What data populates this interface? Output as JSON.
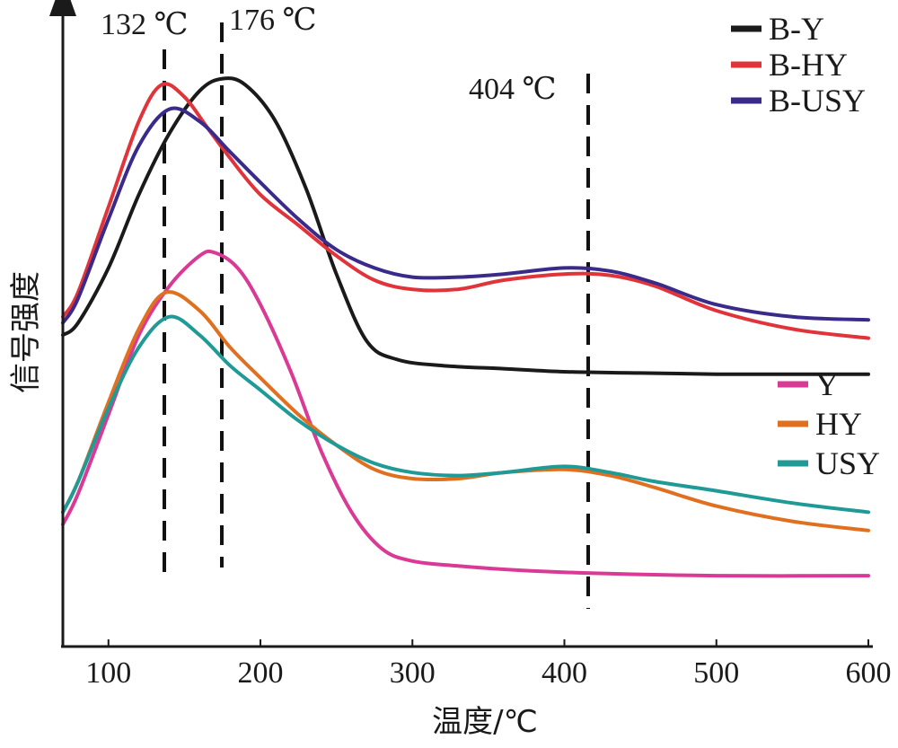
{
  "chart_data": {
    "type": "line",
    "xlabel": "温度/℃",
    "ylabel": "信号强度",
    "xlim": [
      70,
      600
    ],
    "ylim": [
      0,
      100
    ],
    "x_ticks": [
      100,
      200,
      300,
      400,
      500,
      600
    ],
    "x_tick_labels": [
      "100",
      "200",
      "300",
      "400",
      "500",
      "600"
    ],
    "y_ticks_shown": false,
    "legend_groups": [
      {
        "placement": "top-right",
        "entries": [
          "B-Y",
          "B-HY",
          "B-USY"
        ]
      },
      {
        "placement": "middle-right",
        "entries": [
          "Y",
          "HY",
          "USY"
        ]
      }
    ],
    "reference_lines": [
      {
        "x": 132,
        "label": "132 ℃",
        "style": "dashed"
      },
      {
        "x": 176,
        "label": "176 ℃",
        "style": "dashed"
      },
      {
        "x": 404,
        "label": "404 ℃",
        "style": "dashed"
      }
    ],
    "series": [
      {
        "name": "B-Y",
        "color": "#1a1a1a",
        "x": [
          70,
          80,
          100,
          120,
          140,
          160,
          175,
          190,
          210,
          230,
          250,
          270,
          290,
          320,
          360,
          400,
          450,
          500,
          550,
          600
        ],
        "y": [
          51,
          53,
          62,
          74,
          84,
          91,
          93,
          92,
          86,
          75,
          61,
          50,
          47,
          46,
          45.5,
          45,
          44.8,
          44.6,
          44.6,
          44.6
        ]
      },
      {
        "name": "B-HY",
        "color": "#e0343a",
        "x": [
          70,
          80,
          100,
          120,
          135,
          150,
          165,
          180,
          200,
          225,
          250,
          275,
          300,
          330,
          360,
          400,
          430,
          460,
          500,
          550,
          600
        ],
        "y": [
          54,
          58,
          72,
          86,
          92,
          90,
          85,
          80,
          74,
          69,
          64,
          60,
          58.5,
          58.5,
          60,
          61,
          60.8,
          59,
          55,
          52,
          50.5
        ]
      },
      {
        "name": "B-USY",
        "color": "#3a2a8a",
        "x": [
          70,
          80,
          100,
          120,
          140,
          160,
          180,
          200,
          225,
          250,
          275,
          300,
          330,
          360,
          400,
          430,
          460,
          500,
          550,
          600
        ],
        "y": [
          53,
          57,
          70,
          82,
          88,
          86,
          81,
          76,
          70,
          65,
          62,
          60.5,
          60.5,
          61,
          62,
          61.5,
          59.5,
          56,
          54,
          53.5
        ]
      },
      {
        "name": "Y",
        "color": "#d93a96",
        "x": [
          70,
          80,
          100,
          120,
          140,
          160,
          170,
          185,
          200,
          220,
          240,
          260,
          280,
          300,
          330,
          370,
          420,
          500,
          600
        ],
        "y": [
          20,
          25,
          38,
          51,
          59,
          64,
          64.5,
          62,
          56,
          45,
          32,
          22,
          16,
          14,
          13.2,
          12.5,
          12,
          11.6,
          11.6
        ]
      },
      {
        "name": "HY",
        "color": "#e0701f",
        "x": [
          70,
          80,
          100,
          120,
          138,
          160,
          180,
          200,
          225,
          250,
          275,
          300,
          330,
          360,
          400,
          430,
          460,
          500,
          550,
          600
        ],
        "y": [
          22,
          27,
          40,
          52,
          58,
          55,
          49,
          44,
          38,
          33,
          29,
          27.5,
          27.5,
          28.5,
          29,
          28,
          26,
          23,
          20.5,
          19
        ]
      },
      {
        "name": "USY",
        "color": "#1f9a96",
        "x": [
          70,
          80,
          100,
          120,
          140,
          160,
          180,
          200,
          225,
          250,
          275,
          300,
          330,
          360,
          400,
          430,
          460,
          500,
          550,
          600
        ],
        "y": [
          22,
          27,
          39,
          49,
          54,
          51,
          46,
          42,
          37,
          33,
          30,
          28.5,
          28,
          28.5,
          29.5,
          28.5,
          27,
          25.5,
          23.5,
          22
        ]
      }
    ]
  }
}
